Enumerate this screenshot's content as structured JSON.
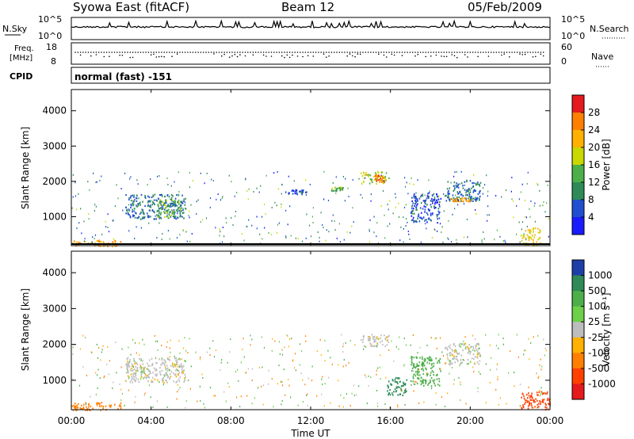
{
  "header": {
    "station": "Syowa East (fitACF)",
    "beam": "Beam 12",
    "date": "05/Feb/2009"
  },
  "noise_panel": {
    "left_label": "N.Sky",
    "right_label": "N.Search",
    "ticks_left": [
      "10^5",
      "10^0"
    ],
    "ticks_right": [
      "10^5",
      "10^0"
    ]
  },
  "freq_panel": {
    "left_label_1": "Freq.",
    "left_label_2": "[MHz]",
    "right_label": "Nave",
    "ticks_left": [
      "18",
      "8"
    ],
    "ticks_right": [
      "60",
      "0"
    ]
  },
  "cpid": {
    "label": "CPID",
    "value": "normal (fast) -151"
  },
  "power_colorbar": {
    "label": "Power [dB]",
    "ticks": [
      "28",
      "24",
      "20",
      "16",
      "12",
      "8",
      "4"
    ],
    "colors": [
      "#e41a1c",
      "#ff7f00",
      "#ffb000",
      "#c8d800",
      "#4daf4a",
      "#2e8b57",
      "#1f4fd0",
      "#1a1aff"
    ]
  },
  "velocity_colorbar": {
    "label": "Velocity [m s⁻¹]",
    "ticks": [
      "1000",
      "500",
      "100",
      "25",
      "-25",
      "-100",
      "-500",
      "-1000"
    ],
    "colors": [
      "#1f3fa8",
      "#2e8b57",
      "#4daf4a",
      "#6dd04a",
      "#bdbdbd",
      "#ffb000",
      "#ff7f00",
      "#ff4000",
      "#e41a1c"
    ]
  },
  "chart_data": [
    {
      "type": "heatmap",
      "title": "Power",
      "ylabel": "Slant Range [km]",
      "xlabel": "Time UT",
      "x_ticks": [
        "00:00",
        "04:00",
        "08:00",
        "12:00",
        "16:00",
        "20:00",
        "00:00"
      ],
      "y_ticks": [
        1000,
        2000,
        3000,
        4000
      ],
      "xlim_hours": [
        0,
        24
      ],
      "ylim_km": [
        180,
        4600
      ],
      "echo_regions": [
        {
          "t": [
            2.7,
            5.7
          ],
          "r": [
            950,
            1650
          ],
          "level": 8
        },
        {
          "t": [
            4.3,
            5.5
          ],
          "r": [
            1000,
            1500
          ],
          "level": 12
        },
        {
          "t": [
            0.0,
            2.5
          ],
          "r": [
            180,
            350
          ],
          "level": 20
        },
        {
          "t": [
            14.5,
            15.9
          ],
          "r": [
            1950,
            2300
          ],
          "level": 14
        },
        {
          "t": [
            15.2,
            15.7
          ],
          "r": [
            2000,
            2200
          ],
          "level": 22
        },
        {
          "t": [
            13.0,
            13.6
          ],
          "r": [
            1750,
            1850
          ],
          "level": 12
        },
        {
          "t": [
            18.7,
            20.5
          ],
          "r": [
            1450,
            2050
          ],
          "level": 8
        },
        {
          "t": [
            19.0,
            20.0
          ],
          "r": [
            1450,
            1550
          ],
          "level": 20
        },
        {
          "t": [
            22.5,
            23.5
          ],
          "r": [
            200,
            700
          ],
          "level": 16
        },
        {
          "t": [
            10.7,
            11.8
          ],
          "r": [
            1650,
            1780
          ],
          "level": 6
        },
        {
          "t": [
            17.0,
            18.5
          ],
          "r": [
            850,
            1700
          ],
          "level": 6
        }
      ]
    },
    {
      "type": "heatmap",
      "title": "Velocity",
      "ylabel": "Slant Range [km]",
      "xlabel": "Time UT",
      "x_ticks": [
        "00:00",
        "04:00",
        "08:00",
        "12:00",
        "16:00",
        "20:00",
        "00:00"
      ],
      "y_ticks": [
        1000,
        2000,
        3000,
        4000
      ],
      "xlim_hours": [
        0,
        24
      ],
      "ylim_km": [
        180,
        4600
      ],
      "echo_regions": [
        {
          "t": [
            2.7,
            5.7
          ],
          "r": [
            950,
            1650
          ],
          "velocity": 0
        },
        {
          "t": [
            0.0,
            2.5
          ],
          "r": [
            180,
            400
          ],
          "velocity": -300
        },
        {
          "t": [
            14.5,
            15.9
          ],
          "r": [
            1950,
            2300
          ],
          "velocity": 0
        },
        {
          "t": [
            15.8,
            16.8
          ],
          "r": [
            600,
            1100
          ],
          "velocity": 800
        },
        {
          "t": [
            18.7,
            20.5
          ],
          "r": [
            1450,
            2050
          ],
          "velocity": 0
        },
        {
          "t": [
            22.5,
            24.0
          ],
          "r": [
            200,
            700
          ],
          "velocity": -600
        },
        {
          "t": [
            17.0,
            18.5
          ],
          "r": [
            850,
            1700
          ],
          "velocity": 400
        }
      ]
    }
  ]
}
